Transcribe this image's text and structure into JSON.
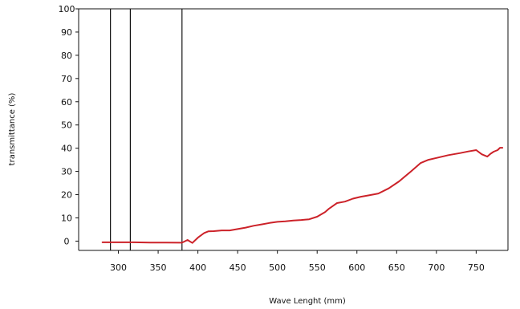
{
  "chart_data": {
    "type": "line",
    "title": "",
    "xlabel": "Wave Lenght (mm)",
    "ylabel": "transmittance (%)",
    "xlim": [
      250,
      790
    ],
    "ylim": [
      -4,
      100
    ],
    "x_ticks": [
      300,
      350,
      400,
      450,
      500,
      550,
      600,
      650,
      700,
      750
    ],
    "x_tick_labels": [
      "300",
      "350",
      "400",
      "450",
      "500",
      "550",
      "600",
      "650",
      "700",
      "750"
    ],
    "y_ticks": [
      0,
      10,
      20,
      30,
      40,
      50,
      60,
      70,
      80,
      90,
      100
    ],
    "y_tick_labels": [
      "0",
      "10",
      "20",
      "30",
      "40",
      "50",
      "60",
      "70",
      "80",
      "90",
      "100"
    ],
    "vertical_lines": [
      290,
      315,
      380
    ],
    "grid": false,
    "legend": "none",
    "series": [
      {
        "color": "#cc2229",
        "x": [
          280,
          300,
          320,
          340,
          360,
          380,
          387,
          393,
          400,
          408,
          413,
          420,
          430,
          440,
          450,
          460,
          470,
          480,
          490,
          500,
          510,
          520,
          530,
          540,
          550,
          560,
          565,
          575,
          585,
          595,
          605,
          615,
          627,
          640,
          653,
          668,
          680,
          690,
          700,
          715,
          730,
          740,
          750,
          757,
          764,
          768,
          772,
          777,
          780,
          783
        ],
        "y": [
          -0.5,
          -0.5,
          -0.5,
          -0.6,
          -0.6,
          -0.7,
          0.5,
          -0.8,
          1.5,
          3.5,
          4.2,
          4.3,
          4.6,
          4.6,
          5.2,
          5.8,
          6.6,
          7.2,
          7.8,
          8.3,
          8.5,
          8.9,
          9.1,
          9.4,
          10.5,
          12.5,
          14.0,
          16.4,
          17.0,
          18.3,
          19.1,
          19.7,
          20.5,
          22.7,
          25.7,
          30.0,
          33.6,
          35.0,
          35.8,
          37.0,
          37.9,
          38.6,
          39.2,
          37.4,
          36.4,
          37.6,
          38.5,
          39.2,
          40.2,
          40.2
        ]
      }
    ]
  }
}
